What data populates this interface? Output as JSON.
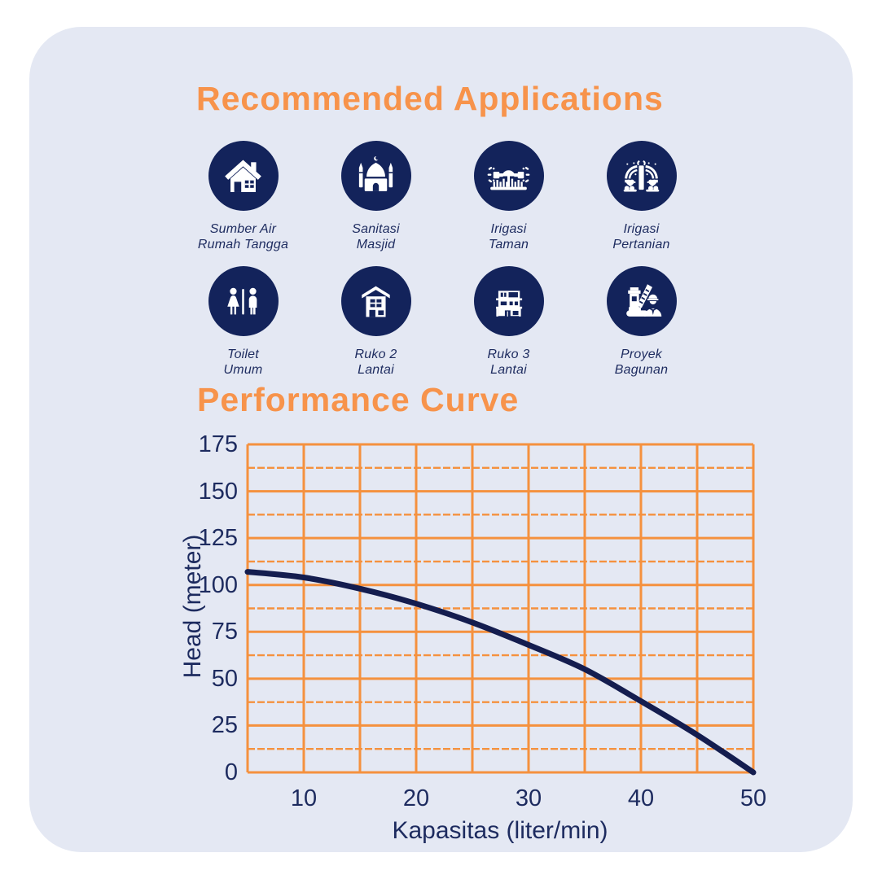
{
  "colors": {
    "accent_orange": "#F7934B",
    "grid_orange": "#F5913E",
    "icon_navy": "#13235B",
    "curve_navy": "#141D4F",
    "text_navy": "#1D2B5F",
    "card_bg": "#E4E8F3",
    "page_bg": "#FFFFFF"
  },
  "applications": {
    "title": "Recommended Applications",
    "items": [
      {
        "icon": "house-icon",
        "label_line1": "Sumber Air",
        "label_line2": "Rumah Tangga"
      },
      {
        "icon": "mosque-icon",
        "label_line1": "Sanitasi",
        "label_line2": "Masjid"
      },
      {
        "icon": "sprinkler-icon",
        "label_line1": "Irigasi",
        "label_line2": "Taman"
      },
      {
        "icon": "farm-irrigation-icon",
        "label_line1": "Irigasi",
        "label_line2": "Pertanian"
      },
      {
        "icon": "restroom-icon",
        "label_line1": "Toilet",
        "label_line2": "Umum"
      },
      {
        "icon": "shophouse-2-story-icon",
        "label_line1": "Ruko 2",
        "label_line2": "Lantai"
      },
      {
        "icon": "shophouse-3-story-icon",
        "label_line1": "Ruko 3",
        "label_line2": "Lantai"
      },
      {
        "icon": "construction-crane-worker-icon",
        "label_line1": "Proyek",
        "label_line2": "Bagunan"
      }
    ]
  },
  "performance": {
    "title": "Performance Curve"
  },
  "chart_data": {
    "type": "line",
    "title": "Performance Curve",
    "xlabel": "Kapasitas (liter/min)",
    "ylabel": "Head (meter)",
    "xlim": [
      5,
      50
    ],
    "ylim": [
      0,
      175
    ],
    "x_ticks": [
      10,
      20,
      30,
      40,
      50
    ],
    "y_ticks": [
      0,
      25,
      50,
      75,
      100,
      125,
      150,
      175
    ],
    "x_grid_step": 5,
    "y_grid_step": 12.5,
    "grid": true,
    "legend": false,
    "series": [
      {
        "name": "pump-head-curve",
        "x": [
          5,
          10,
          15,
          20,
          25,
          30,
          35,
          40,
          45,
          50
        ],
        "y": [
          107,
          104,
          98,
          90,
          80,
          68,
          55,
          38,
          20,
          0
        ]
      }
    ]
  }
}
